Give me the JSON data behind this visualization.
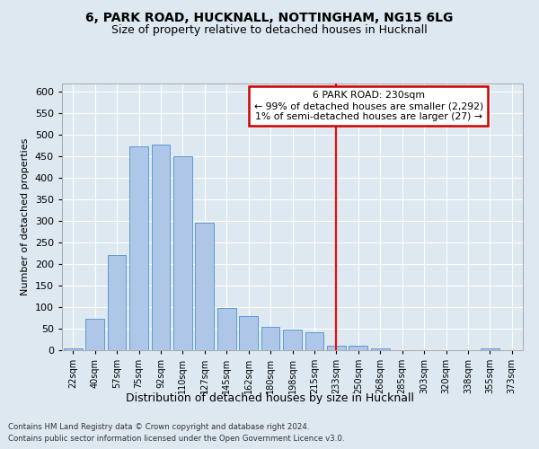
{
  "title1": "6, PARK ROAD, HUCKNALL, NOTTINGHAM, NG15 6LG",
  "title2": "Size of property relative to detached houses in Hucknall",
  "xlabel": "Distribution of detached houses by size in Hucknall",
  "ylabel": "Number of detached properties",
  "bar_labels": [
    "22sqm",
    "40sqm",
    "57sqm",
    "75sqm",
    "92sqm",
    "110sqm",
    "127sqm",
    "145sqm",
    "162sqm",
    "180sqm",
    "198sqm",
    "215sqm",
    "233sqm",
    "250sqm",
    "268sqm",
    "285sqm",
    "303sqm",
    "320sqm",
    "338sqm",
    "355sqm",
    "373sqm"
  ],
  "bar_values": [
    5,
    72,
    220,
    473,
    478,
    450,
    295,
    97,
    80,
    55,
    48,
    42,
    10,
    10,
    5,
    0,
    0,
    0,
    0,
    5,
    0
  ],
  "bar_color": "#aec6e8",
  "bar_edge_color": "#5b9bd5",
  "vline_x_index": 12,
  "vline_color": "#ff0000",
  "annotation_title": "6 PARK ROAD: 230sqm",
  "annotation_line1": "← 99% of detached houses are smaller (2,292)",
  "annotation_line2": "1% of semi-detached houses are larger (27) →",
  "annotation_box_color": "#ffffff",
  "annotation_box_edge": "#cc0000",
  "ylim": [
    0,
    620
  ],
  "yticks": [
    0,
    50,
    100,
    150,
    200,
    250,
    300,
    350,
    400,
    450,
    500,
    550,
    600
  ],
  "bg_color": "#dde8f0",
  "plot_bg_color": "#dde8f0",
  "footer_line1": "Contains HM Land Registry data © Crown copyright and database right 2024.",
  "footer_line2": "Contains public sector information licensed under the Open Government Licence v3.0."
}
